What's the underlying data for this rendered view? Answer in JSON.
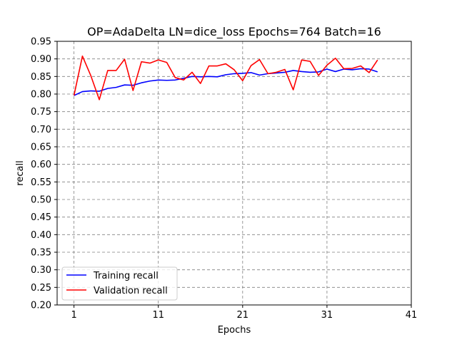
{
  "chart_data": {
    "type": "line",
    "title": "OP=AdaDelta LN=dice_loss Epochs=764 Batch=16",
    "xlabel": "Epochs",
    "ylabel": "recall",
    "xlim": [
      -1,
      41
    ],
    "ylim": [
      0.2,
      0.95
    ],
    "xticks": [
      "1",
      "11",
      "21",
      "31",
      "41"
    ],
    "xtick_values": [
      1,
      11,
      21,
      31,
      41
    ],
    "yticks": [
      "0.20",
      "0.25",
      "0.30",
      "0.35",
      "0.40",
      "0.45",
      "0.50",
      "0.55",
      "0.60",
      "0.65",
      "0.70",
      "0.75",
      "0.80",
      "0.85",
      "0.90",
      "0.95"
    ],
    "ytick_values": [
      0.2,
      0.25,
      0.3,
      0.35,
      0.4,
      0.45,
      0.5,
      0.55,
      0.6,
      0.65,
      0.7,
      0.75,
      0.8,
      0.85,
      0.9,
      0.95
    ],
    "grid": true,
    "legend_position": "lower-left",
    "x": [
      1,
      2,
      3,
      4,
      5,
      6,
      7,
      8,
      9,
      10,
      11,
      12,
      13,
      14,
      15,
      16,
      17,
      18,
      19,
      20,
      21,
      22,
      23,
      24,
      25,
      26,
      27,
      28,
      29,
      30,
      31,
      32,
      33,
      34,
      35,
      36,
      37
    ],
    "series": [
      {
        "name": "Training recall",
        "color": "#0000ff",
        "values": [
          0.796,
          0.807,
          0.809,
          0.808,
          0.816,
          0.819,
          0.826,
          0.825,
          0.832,
          0.837,
          0.84,
          0.839,
          0.84,
          0.845,
          0.85,
          0.849,
          0.85,
          0.849,
          0.855,
          0.858,
          0.859,
          0.861,
          0.854,
          0.858,
          0.86,
          0.862,
          0.867,
          0.864,
          0.862,
          0.863,
          0.871,
          0.864,
          0.871,
          0.869,
          0.872,
          0.871,
          0.863
        ]
      },
      {
        "name": "Validation recall",
        "color": "#ff0000",
        "values": [
          0.796,
          0.908,
          0.852,
          0.784,
          0.867,
          0.867,
          0.899,
          0.81,
          0.892,
          0.888,
          0.897,
          0.89,
          0.847,
          0.84,
          0.862,
          0.83,
          0.88,
          0.88,
          0.886,
          0.869,
          0.838,
          0.881,
          0.898,
          0.858,
          0.862,
          0.87,
          0.812,
          0.897,
          0.893,
          0.853,
          0.882,
          0.902,
          0.872,
          0.873,
          0.88,
          0.861,
          0.897
        ]
      }
    ]
  }
}
